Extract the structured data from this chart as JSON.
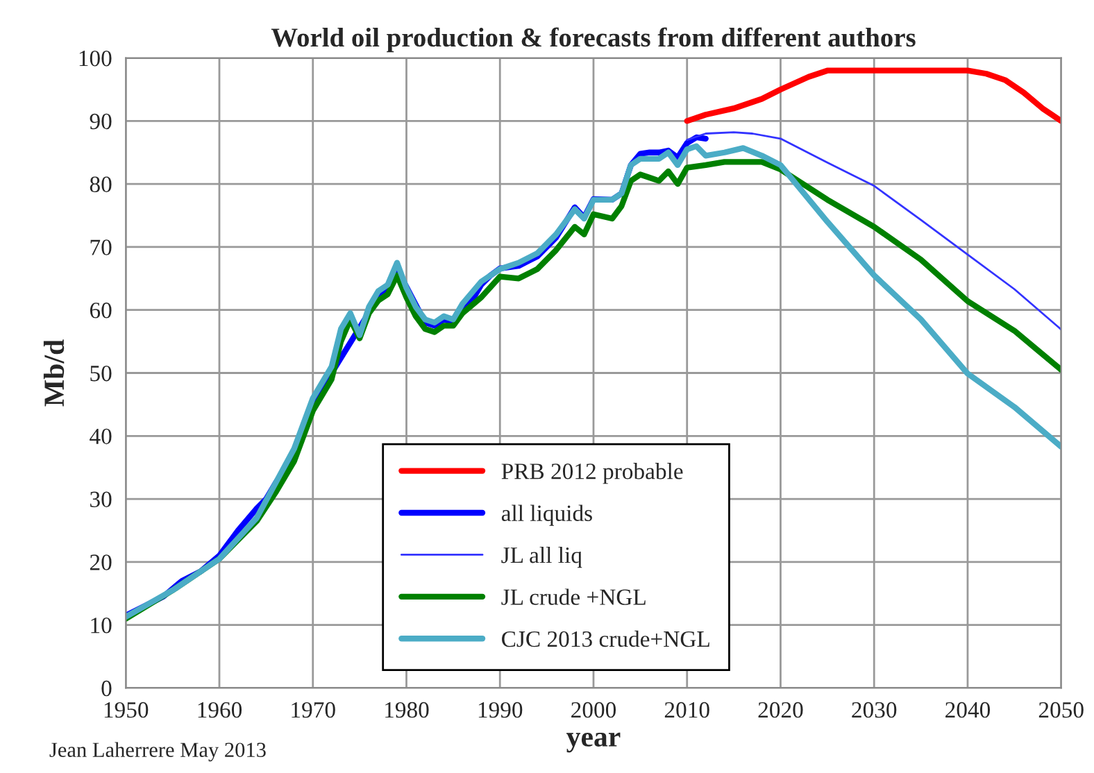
{
  "chart_data": {
    "type": "line",
    "title": "World oil production & forecasts from different authors",
    "xlabel": "year",
    "ylabel": "Mb/d",
    "xlim": [
      1950,
      2050
    ],
    "ylim": [
      0,
      100
    ],
    "xticks": [
      1950,
      1960,
      1970,
      1980,
      1990,
      2000,
      2010,
      2020,
      2030,
      2040,
      2050
    ],
    "yticks": [
      0,
      10,
      20,
      30,
      40,
      50,
      60,
      70,
      80,
      90,
      100
    ],
    "grid": true,
    "legend": "bottom",
    "marker": "none",
    "line_style": "solid",
    "annotations": [
      "Jean Laherrere May 2013"
    ],
    "series": [
      {
        "name": "PRB 2012 probable",
        "color": "#ff0000",
        "x": [
          2010,
          2012,
          2015,
          2018,
          2020,
          2023,
          2025,
          2030,
          2035,
          2040,
          2042,
          2044,
          2046,
          2048,
          2049,
          2050
        ],
        "values": [
          90,
          91,
          92,
          93.5,
          95,
          97,
          98,
          98,
          98,
          98,
          97.5,
          96.5,
          94.5,
          92,
          91,
          90
        ]
      },
      {
        "name": "all liquids",
        "color": "#0000ff",
        "x": [
          1950,
          1952,
          1954,
          1956,
          1958,
          1960,
          1962,
          1964,
          1965,
          1966,
          1968,
          1970,
          1972,
          1973,
          1974,
          1975,
          1976,
          1977,
          1978,
          1979,
          1980,
          1981,
          1982,
          1983,
          1984,
          1985,
          1986,
          1987,
          1988,
          1989,
          1990,
          1992,
          1994,
          1996,
          1998,
          1999,
          2000,
          2002,
          2003,
          2004,
          2005,
          2006,
          2007,
          2008,
          2009,
          2010,
          2011,
          2012
        ],
        "values": [
          11.5,
          13,
          14.5,
          17,
          18.5,
          21,
          25,
          28.5,
          30,
          32.5,
          37,
          45,
          50,
          null,
          null,
          null,
          null,
          62,
          63.5,
          66.5,
          null,
          null,
          58,
          57.5,
          58.5,
          58,
          60.5,
          61.5,
          64,
          65.5,
          66.6,
          67,
          68.5,
          71.5,
          76.3,
          74.7,
          77.6,
          77.5,
          78.5,
          83,
          84.8,
          85,
          85,
          85.3,
          84.2,
          86.5,
          87.4,
          87.2
        ]
      },
      {
        "name": "JL all liq",
        "color": "#3333ff",
        "x": [
          2010,
          2012,
          2015,
          2017,
          2020,
          2025,
          2030,
          2035,
          2040,
          2045,
          2050
        ],
        "values": [
          87,
          88,
          88.2,
          88,
          87.2,
          83.4,
          79.7,
          74.3,
          68.8,
          63.3,
          56.9
        ]
      },
      {
        "name": "JL crude +NGL",
        "color": "#008000",
        "x": [
          1950,
          1955,
          1960,
          1964,
          1966,
          1968,
          1970,
          1972,
          1973,
          1974,
          1975,
          1976,
          1977,
          1978,
          1979,
          1980,
          1981,
          1982,
          1983,
          1984,
          1985,
          1986,
          1988,
          1990,
          1992,
          1994,
          1996,
          1998,
          1999,
          2000,
          2002,
          2003,
          2004,
          2005,
          2006,
          2007,
          2008,
          2009,
          2010,
          2012,
          2014,
          2018,
          2020,
          2025,
          2030,
          2035,
          2040,
          2045,
          2050
        ],
        "values": [
          11,
          15.5,
          20.5,
          26.5,
          31,
          36,
          44,
          49,
          55,
          58.5,
          55.5,
          59.5,
          61.5,
          62.5,
          65.5,
          62,
          59,
          57,
          56.5,
          57.5,
          57.5,
          59.5,
          62,
          65.3,
          65,
          66.5,
          69.5,
          73.2,
          72,
          75.2,
          74.5,
          76.5,
          80.5,
          81.5,
          81,
          80.5,
          82,
          80,
          82.6,
          83,
          83.5,
          83.5,
          82.3,
          77.5,
          73.2,
          68,
          61.4,
          56.7,
          50.5
        ]
      },
      {
        "name": "CJC 2013 crude+NGL",
        "color": "#4bacc6",
        "x": [
          1950,
          1955,
          1960,
          1964,
          1966,
          1968,
          1970,
          1972,
          1973,
          1974,
          1975,
          1976,
          1977,
          1978,
          1979,
          1980,
          1981,
          1982,
          1983,
          1984,
          1985,
          1986,
          1988,
          1990,
          1992,
          1994,
          1996,
          1998,
          1999,
          2000,
          2002,
          2003,
          2004,
          2005,
          2006,
          2007,
          2008,
          2009,
          2010,
          2011,
          2012,
          2014,
          2016,
          2018,
          2020,
          2025,
          2030,
          2035,
          2040,
          2045,
          2050
        ],
        "values": [
          11.3,
          15.5,
          20.5,
          27,
          32.5,
          38,
          46,
          51,
          57,
          59.5,
          56,
          60.5,
          63,
          64,
          67.5,
          63.5,
          60.5,
          58.5,
          58,
          59,
          58.5,
          61,
          64.5,
          66.5,
          67.5,
          69,
          72,
          76,
          74.5,
          77.5,
          77.5,
          78.5,
          83,
          84,
          84,
          84,
          85,
          83,
          85.5,
          86,
          84.5,
          85,
          85.7,
          84.5,
          83,
          74,
          65.5,
          58.5,
          49.9,
          44.6,
          38.3
        ]
      }
    ]
  }
}
